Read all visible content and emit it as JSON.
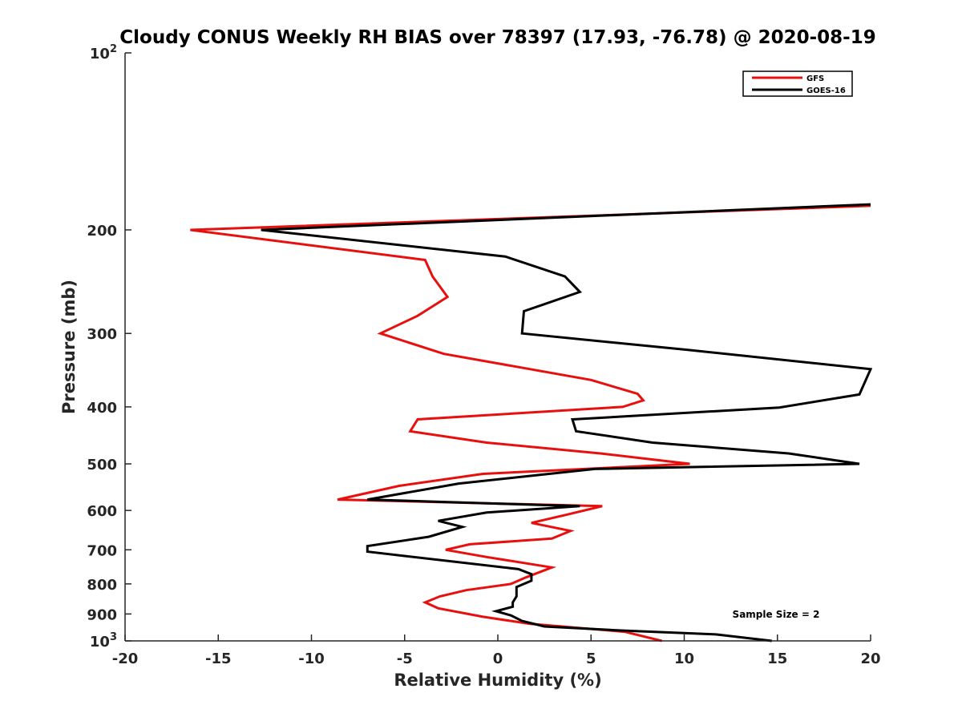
{
  "chart_data": {
    "type": "line",
    "title": "Cloudy CONUS Weekly RH BIAS over 78397 (17.93, -76.78) @ 2020-08-19",
    "xlabel": "Relative Humidity (%)",
    "ylabel": "Pressure (mb)",
    "xlim": [
      -20,
      20
    ],
    "ylim": [
      100,
      1000
    ],
    "yscale": "log",
    "y_reversed": true,
    "grid": false,
    "legend_position": "top-right",
    "x_ticks": [
      "-20",
      "-15",
      "-10",
      "-5",
      "0",
      "5",
      "10",
      "15",
      "20"
    ],
    "x_tick_values": [
      -20,
      -15,
      -10,
      -5,
      0,
      5,
      10,
      15,
      20
    ],
    "y_ticks": [
      {
        "value": 100,
        "base": "10",
        "exp": "2"
      },
      {
        "value": 200,
        "label": "200"
      },
      {
        "value": 300,
        "label": "300"
      },
      {
        "value": 400,
        "label": "400"
      },
      {
        "value": 500,
        "label": "500"
      },
      {
        "value": 600,
        "label": "600"
      },
      {
        "value": 700,
        "label": "700"
      },
      {
        "value": 800,
        "label": "800"
      },
      {
        "value": 900,
        "label": "900"
      },
      {
        "value": 1000,
        "base": "10",
        "exp": "3"
      }
    ],
    "annotation": "Sample Size = 2",
    "series": [
      {
        "name": "GFS",
        "color": "#e8100e",
        "points": [
          {
            "x": 20,
            "y": 182
          },
          {
            "x": -16.5,
            "y": 200
          },
          {
            "x": -3.9,
            "y": 225
          },
          {
            "x": -3.5,
            "y": 240
          },
          {
            "x": -2.7,
            "y": 260
          },
          {
            "x": -4.3,
            "y": 280
          },
          {
            "x": -6.3,
            "y": 300
          },
          {
            "x": -2.9,
            "y": 325
          },
          {
            "x": 5.0,
            "y": 360
          },
          {
            "x": 7.5,
            "y": 380
          },
          {
            "x": 7.8,
            "y": 390
          },
          {
            "x": 6.7,
            "y": 400
          },
          {
            "x": -4.3,
            "y": 420
          },
          {
            "x": -4.7,
            "y": 440
          },
          {
            "x": -0.6,
            "y": 460
          },
          {
            "x": 5.5,
            "y": 480
          },
          {
            "x": 10.3,
            "y": 500
          },
          {
            "x": -0.8,
            "y": 520
          },
          {
            "x": -5.3,
            "y": 545
          },
          {
            "x": -8.6,
            "y": 575
          },
          {
            "x": 5.6,
            "y": 590
          },
          {
            "x": 3.7,
            "y": 610
          },
          {
            "x": 1.8,
            "y": 630
          },
          {
            "x": 3.9,
            "y": 650
          },
          {
            "x": 2.9,
            "y": 670
          },
          {
            "x": -1.5,
            "y": 685
          },
          {
            "x": -2.8,
            "y": 700
          },
          {
            "x": -0.6,
            "y": 720
          },
          {
            "x": 2.9,
            "y": 750
          },
          {
            "x": 1.5,
            "y": 780
          },
          {
            "x": 0.7,
            "y": 800
          },
          {
            "x": -1.7,
            "y": 820
          },
          {
            "x": -3.1,
            "y": 840
          },
          {
            "x": -3.9,
            "y": 860
          },
          {
            "x": -3.2,
            "y": 880
          },
          {
            "x": -0.8,
            "y": 910
          },
          {
            "x": 1.7,
            "y": 935
          },
          {
            "x": 6.8,
            "y": 965
          },
          {
            "x": 8.8,
            "y": 1000
          }
        ]
      },
      {
        "name": "GOES-16",
        "color": "#000000",
        "points": [
          {
            "x": 20,
            "y": 181
          },
          {
            "x": -12.7,
            "y": 200
          },
          {
            "x": 0.4,
            "y": 222
          },
          {
            "x": 3.6,
            "y": 240
          },
          {
            "x": 4.4,
            "y": 255
          },
          {
            "x": 1.4,
            "y": 275
          },
          {
            "x": 1.3,
            "y": 300
          },
          {
            "x": 10.2,
            "y": 320
          },
          {
            "x": 20,
            "y": 345
          },
          {
            "x": 19.4,
            "y": 381
          },
          {
            "x": 15.1,
            "y": 401
          },
          {
            "x": 4.0,
            "y": 420
          },
          {
            "x": 4.2,
            "y": 440
          },
          {
            "x": 8.3,
            "y": 460
          },
          {
            "x": 15.6,
            "y": 480
          },
          {
            "x": 19.4,
            "y": 500
          },
          {
            "x": 5.2,
            "y": 510
          },
          {
            "x": -2.1,
            "y": 540
          },
          {
            "x": -7.0,
            "y": 575
          },
          {
            "x": 4.4,
            "y": 590
          },
          {
            "x": -0.6,
            "y": 605
          },
          {
            "x": -3.2,
            "y": 625
          },
          {
            "x": -1.9,
            "y": 640
          },
          {
            "x": -3.7,
            "y": 665
          },
          {
            "x": -7.0,
            "y": 690
          },
          {
            "x": -7.0,
            "y": 705
          },
          {
            "x": 1.1,
            "y": 755
          },
          {
            "x": 1.8,
            "y": 770
          },
          {
            "x": 1.8,
            "y": 790
          },
          {
            "x": 1.0,
            "y": 810
          },
          {
            "x": 1.0,
            "y": 840
          },
          {
            "x": 0.8,
            "y": 860
          },
          {
            "x": 0.8,
            "y": 875
          },
          {
            "x": -0.1,
            "y": 890
          },
          {
            "x": 0.7,
            "y": 905
          },
          {
            "x": 1.3,
            "y": 925
          },
          {
            "x": 2.5,
            "y": 945
          },
          {
            "x": 6.6,
            "y": 960
          },
          {
            "x": 11.7,
            "y": 975
          },
          {
            "x": 14.7,
            "y": 1000
          }
        ]
      }
    ]
  }
}
